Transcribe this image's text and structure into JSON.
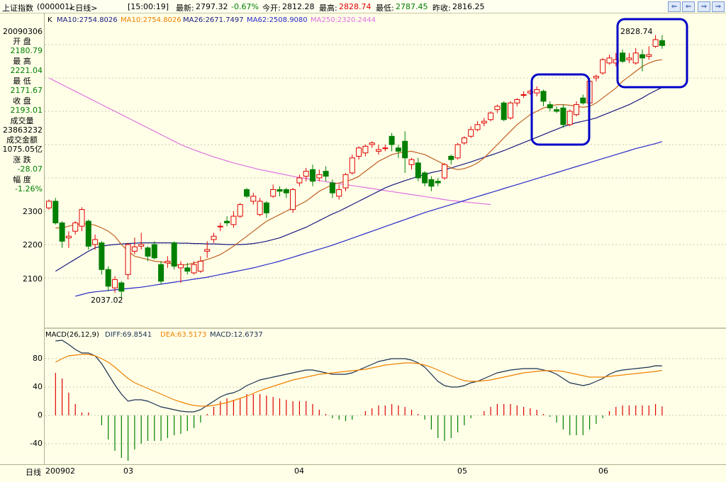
{
  "header": {
    "index_name": "上证指数",
    "code": "(000001)",
    "period": "<日线>",
    "time": "[15:00:19]",
    "latest_label": "最新:",
    "latest_value": "2797.32",
    "change_pct": "-0.67%",
    "open_label": "今开:",
    "open_value": "2812.28",
    "high_label": "最高:",
    "high_value": "2828.74",
    "low_label": "最低:",
    "low_value": "2787.45",
    "prev_label": "昨收:",
    "prev_value": "2816.25"
  },
  "ma_legend": {
    "k": "K",
    "ma10a": "MA10:2754.8026",
    "ma10b": "MA10:2754.8026",
    "ma26": "MA26:2671.7497",
    "ma62": "MA62:2508.9080",
    "ma250": "MA250:2320.2444"
  },
  "info_panel": {
    "date": "20090306",
    "open_label": "开  盘",
    "open": "2180.79",
    "high_label": "最  高",
    "high": "2221.04",
    "low_label": "最  低",
    "low": "2171.67",
    "close_label": "收  盘",
    "close": "2193.01",
    "volume_label": "成交量",
    "volume": "23863232",
    "amount_label": "成交金额",
    "amount": "1075.05亿",
    "change_label": "涨  跌",
    "change": "-28.07",
    "pct_label": "幅  度",
    "pct": "-1.26%"
  },
  "price_axis": [
    "2300",
    "2200",
    "2100"
  ],
  "macd_legend": {
    "name": "MACD(26,12,9)",
    "diff": "DIFF:69.8541",
    "dea": "DEA:63.5173",
    "macd": "MACD:12.6737"
  },
  "macd_axis": [
    "80",
    "40",
    "0",
    "-40"
  ],
  "x_axis": {
    "label": "日线",
    "ticks": [
      "200902",
      "03",
      "04",
      "05",
      "06"
    ]
  },
  "annotations": {
    "low_label": "2037.02",
    "high_label": "2828.74"
  },
  "window_buttons": [
    "⇐",
    "⇐",
    "⇒",
    "⇒"
  ],
  "colors": {
    "up": "#e00000",
    "down": "#008000",
    "ma10": "#c06020",
    "ma26": "#1a1a80",
    "ma62": "#2828c8",
    "ma250": "#e070e0",
    "diff": "#1a3050",
    "dea": "#f08000",
    "highlight": "#0000c8"
  },
  "chart_data": {
    "type": "candlestick",
    "ylim": [
      2037.02,
      2828.74
    ],
    "candles": [
      {
        "o": 2310,
        "c": 2330,
        "h": 2335,
        "l": 2305
      },
      {
        "o": 2330,
        "c": 2265,
        "h": 2340,
        "l": 2260
      },
      {
        "o": 2265,
        "c": 2210,
        "h": 2270,
        "l": 2190
      },
      {
        "o": 2220,
        "c": 2225,
        "h": 2240,
        "l": 2190
      },
      {
        "o": 2240,
        "c": 2265,
        "h": 2270,
        "l": 2230
      },
      {
        "o": 2255,
        "c": 2305,
        "h": 2312,
        "l": 2240
      },
      {
        "o": 2270,
        "c": 2195,
        "h": 2275,
        "l": 2185
      },
      {
        "o": 2200,
        "c": 2215,
        "h": 2230,
        "l": 2185
      },
      {
        "o": 2205,
        "c": 2125,
        "h": 2210,
        "l": 2110
      },
      {
        "o": 2125,
        "c": 2075,
        "h": 2135,
        "l": 2060
      },
      {
        "o": 2070,
        "c": 2095,
        "h": 2105,
        "l": 2055
      },
      {
        "o": 2085,
        "c": 2060,
        "h": 2090,
        "l": 2037.02
      },
      {
        "o": 2110,
        "c": 2200,
        "h": 2205,
        "l": 2095
      },
      {
        "o": 2180,
        "c": 2193,
        "h": 2221,
        "l": 2171
      },
      {
        "o": 2195,
        "c": 2200,
        "h": 2235,
        "l": 2185
      },
      {
        "o": 2190,
        "c": 2165,
        "h": 2195,
        "l": 2150
      },
      {
        "o": 2200,
        "c": 2160,
        "h": 2210,
        "l": 2155
      },
      {
        "o": 2140,
        "c": 2090,
        "h": 2150,
        "l": 2080
      },
      {
        "o": 2145,
        "c": 2150,
        "h": 2165,
        "l": 2130
      },
      {
        "o": 2205,
        "c": 2135,
        "h": 2210,
        "l": 2125
      },
      {
        "o": 2130,
        "c": 2140,
        "h": 2150,
        "l": 2085
      },
      {
        "o": 2130,
        "c": 2120,
        "h": 2145,
        "l": 2110
      },
      {
        "o": 2115,
        "c": 2140,
        "h": 2150,
        "l": 2110
      },
      {
        "o": 2120,
        "c": 2150,
        "h": 2165,
        "l": 2115
      },
      {
        "o": 2180,
        "c": 2185,
        "h": 2210,
        "l": 2160
      },
      {
        "o": 2215,
        "c": 2225,
        "h": 2235,
        "l": 2205
      },
      {
        "o": 2255,
        "c": 2255,
        "h": 2265,
        "l": 2240
      },
      {
        "o": 2270,
        "c": 2265,
        "h": 2285,
        "l": 2255
      },
      {
        "o": 2260,
        "c": 2285,
        "h": 2300,
        "l": 2250
      },
      {
        "o": 2285,
        "c": 2320,
        "h": 2325,
        "l": 2280
      },
      {
        "o": 2365,
        "c": 2345,
        "h": 2370,
        "l": 2340
      },
      {
        "o": 2330,
        "c": 2345,
        "h": 2355,
        "l": 2320
      },
      {
        "o": 2290,
        "c": 2330,
        "h": 2340,
        "l": 2285
      },
      {
        "o": 2325,
        "c": 2295,
        "h": 2330,
        "l": 2280
      },
      {
        "o": 2345,
        "c": 2365,
        "h": 2380,
        "l": 2340
      },
      {
        "o": 2365,
        "c": 2360,
        "h": 2375,
        "l": 2345
      },
      {
        "o": 2365,
        "c": 2355,
        "h": 2370,
        "l": 2340
      },
      {
        "o": 2305,
        "c": 2365,
        "h": 2370,
        "l": 2295
      },
      {
        "o": 2385,
        "c": 2400,
        "h": 2410,
        "l": 2375
      },
      {
        "o": 2405,
        "c": 2420,
        "h": 2430,
        "l": 2390
      },
      {
        "o": 2425,
        "c": 2390,
        "h": 2440,
        "l": 2375
      },
      {
        "o": 2400,
        "c": 2410,
        "h": 2425,
        "l": 2390
      },
      {
        "o": 2420,
        "c": 2405,
        "h": 2435,
        "l": 2390
      },
      {
        "o": 2385,
        "c": 2355,
        "h": 2395,
        "l": 2340
      },
      {
        "o": 2345,
        "c": 2365,
        "h": 2380,
        "l": 2335
      },
      {
        "o": 2370,
        "c": 2410,
        "h": 2415,
        "l": 2360
      },
      {
        "o": 2415,
        "c": 2460,
        "h": 2470,
        "l": 2410
      },
      {
        "o": 2465,
        "c": 2490,
        "h": 2495,
        "l": 2455
      },
      {
        "o": 2475,
        "c": 2495,
        "h": 2500,
        "l": 2465
      },
      {
        "o": 2500,
        "c": 2505,
        "h": 2510,
        "l": 2490
      },
      {
        "o": 2480,
        "c": 2485,
        "h": 2500,
        "l": 2470
      },
      {
        "o": 2490,
        "c": 2490,
        "h": 2500,
        "l": 2480
      },
      {
        "o": 2525,
        "c": 2500,
        "h": 2535,
        "l": 2480
      },
      {
        "o": 2490,
        "c": 2480,
        "h": 2500,
        "l": 2460
      },
      {
        "o": 2510,
        "c": 2460,
        "h": 2540,
        "l": 2415
      },
      {
        "o": 2440,
        "c": 2455,
        "h": 2460,
        "l": 2425
      },
      {
        "o": 2445,
        "c": 2400,
        "h": 2460,
        "l": 2390
      },
      {
        "o": 2415,
        "c": 2385,
        "h": 2420,
        "l": 2375
      },
      {
        "o": 2395,
        "c": 2375,
        "h": 2405,
        "l": 2360
      },
      {
        "o": 2390,
        "c": 2385,
        "h": 2400,
        "l": 2375
      },
      {
        "o": 2400,
        "c": 2440,
        "h": 2445,
        "l": 2395
      },
      {
        "o": 2465,
        "c": 2455,
        "h": 2470,
        "l": 2440
      },
      {
        "o": 2460,
        "c": 2500,
        "h": 2505,
        "l": 2455
      },
      {
        "o": 2505,
        "c": 2520,
        "h": 2525,
        "l": 2500
      },
      {
        "o": 2525,
        "c": 2545,
        "h": 2555,
        "l": 2520
      },
      {
        "o": 2545,
        "c": 2560,
        "h": 2570,
        "l": 2540
      },
      {
        "o": 2565,
        "c": 2570,
        "h": 2580,
        "l": 2555
      },
      {
        "o": 2575,
        "c": 2595,
        "h": 2600,
        "l": 2570
      },
      {
        "o": 2605,
        "c": 2615,
        "h": 2620,
        "l": 2595
      },
      {
        "o": 2625,
        "c": 2575,
        "h": 2630,
        "l": 2570
      },
      {
        "o": 2580,
        "c": 2625,
        "h": 2630,
        "l": 2575
      },
      {
        "o": 2625,
        "c": 2635,
        "h": 2640,
        "l": 2615
      },
      {
        "o": 2650,
        "c": 2650,
        "h": 2660,
        "l": 2640
      },
      {
        "o": 2655,
        "c": 2660,
        "h": 2665,
        "l": 2650
      },
      {
        "o": 2655,
        "c": 2665,
        "h": 2675,
        "l": 2645
      },
      {
        "o": 2660,
        "c": 2630,
        "h": 2665,
        "l": 2615
      },
      {
        "o": 2620,
        "c": 2610,
        "h": 2630,
        "l": 2600
      },
      {
        "o": 2605,
        "c": 2600,
        "h": 2615,
        "l": 2595
      },
      {
        "o": 2610,
        "c": 2560,
        "h": 2620,
        "l": 2550
      },
      {
        "o": 2560,
        "c": 2600,
        "h": 2605,
        "l": 2555
      },
      {
        "o": 2590,
        "c": 2620,
        "h": 2630,
        "l": 2585
      },
      {
        "o": 2640,
        "c": 2625,
        "h": 2650,
        "l": 2620
      },
      {
        "o": 2625,
        "c": 2690,
        "h": 2700,
        "l": 2620
      },
      {
        "o": 2700,
        "c": 2705,
        "h": 2710,
        "l": 2690
      },
      {
        "o": 2715,
        "c": 2755,
        "h": 2760,
        "l": 2710
      },
      {
        "o": 2745,
        "c": 2760,
        "h": 2770,
        "l": 2740
      },
      {
        "o": 2745,
        "c": 2755,
        "h": 2775,
        "l": 2735
      },
      {
        "o": 2775,
        "c": 2750,
        "h": 2785,
        "l": 2745
      },
      {
        "o": 2755,
        "c": 2760,
        "h": 2775,
        "l": 2745
      },
      {
        "o": 2745,
        "c": 2775,
        "h": 2790,
        "l": 2740
      },
      {
        "o": 2770,
        "c": 2760,
        "h": 2785,
        "l": 2720
      },
      {
        "o": 2765,
        "c": 2770,
        "h": 2795,
        "l": 2755
      },
      {
        "o": 2795,
        "c": 2815,
        "h": 2828.74,
        "l": 2790
      },
      {
        "o": 2812.28,
        "c": 2797.32,
        "h": 2828.74,
        "l": 2787.45
      }
    ],
    "ma10": [
      2250,
      2250,
      2255,
      2260,
      2262,
      2262,
      2258,
      2250,
      2240,
      2225,
      2200,
      2180,
      2165,
      2160,
      2155,
      2150,
      2148,
      2145,
      2140,
      2138,
      2140,
      2145,
      2150,
      2155,
      2162,
      2170,
      2182,
      2195,
      2210,
      2225,
      2240,
      2255,
      2270,
      2280,
      2290,
      2300,
      2310,
      2320,
      2330,
      2345,
      2360,
      2370,
      2380,
      2385,
      2390,
      2395,
      2405,
      2420,
      2435,
      2450,
      2460,
      2470,
      2475,
      2478,
      2480,
      2475,
      2470,
      2460,
      2450,
      2440,
      2430,
      2425,
      2428,
      2435,
      2445,
      2460,
      2480,
      2500,
      2520,
      2540,
      2560,
      2575,
      2590,
      2600,
      2610,
      2615,
      2620,
      2620,
      2618,
      2615,
      2612,
      2615,
      2625,
      2640,
      2655,
      2670,
      2690,
      2705,
      2720,
      2735,
      2745,
      2752,
      2755
    ],
    "ma26": [
      2120,
      2132,
      2144,
      2156,
      2168,
      2180,
      2190,
      2195,
      2198,
      2200,
      2202,
      2203,
      2204,
      2205,
      2205,
      2205,
      2205,
      2205,
      2205,
      2204,
      2204,
      2203,
      2203,
      2202,
      2202,
      2201,
      2200,
      2200,
      2200,
      2201,
      2203,
      2206,
      2210,
      2215,
      2220,
      2228,
      2236,
      2244,
      2252,
      2262,
      2272,
      2282,
      2292,
      2300,
      2310,
      2320,
      2330,
      2340,
      2350,
      2360,
      2370,
      2378,
      2385,
      2392,
      2398,
      2405,
      2410,
      2416,
      2420,
      2425,
      2430,
      2436,
      2442,
      2448,
      2455,
      2462,
      2468,
      2475,
      2482,
      2490,
      2498,
      2506,
      2514,
      2522,
      2530,
      2538,
      2546,
      2554,
      2560,
      2566,
      2570,
      2575,
      2580,
      2588,
      2596,
      2604,
      2612,
      2620,
      2630,
      2640,
      2652,
      2662,
      2671.75
    ],
    "ma62": [
      2045,
      2050,
      2055,
      2058,
      2060,
      2062,
      2064,
      2066,
      2068,
      2070,
      2072,
      2075,
      2078,
      2081,
      2084,
      2087,
      2090,
      2093,
      2096,
      2099,
      2102,
      2106,
      2110,
      2114,
      2118,
      2122,
      2126,
      2130,
      2135,
      2140,
      2145,
      2150,
      2156,
      2162,
      2168,
      2174,
      2180,
      2186,
      2192,
      2198,
      2205,
      2212,
      2219,
      2226,
      2233,
      2240,
      2247,
      2254,
      2261,
      2268,
      2275,
      2282,
      2289,
      2296,
      2302,
      2308,
      2314,
      2320,
      2326,
      2332,
      2338,
      2344,
      2350,
      2356,
      2362,
      2368,
      2374,
      2380,
      2386,
      2392,
      2398,
      2404,
      2410,
      2416,
      2422,
      2428,
      2434,
      2440,
      2446,
      2452,
      2458,
      2464,
      2470,
      2476,
      2482,
      2488,
      2493,
      2498,
      2503,
      2508.91
    ],
    "ma250": [
      2700,
      2690,
      2680,
      2670,
      2660,
      2650,
      2640,
      2630,
      2620,
      2610,
      2600,
      2590,
      2580,
      2570,
      2560,
      2550,
      2540,
      2530,
      2520,
      2510,
      2500,
      2492,
      2484,
      2477,
      2470,
      2463,
      2457,
      2451,
      2445,
      2440,
      2435,
      2430,
      2425,
      2421,
      2417,
      2413,
      2409,
      2405,
      2401,
      2398,
      2395,
      2392,
      2389,
      2386,
      2383,
      2380,
      2377,
      2374,
      2371,
      2368,
      2365,
      2362,
      2359,
      2356,
      2353,
      2350,
      2347,
      2344,
      2341,
      2338,
      2335,
      2332,
      2330,
      2328,
      2326,
      2324,
      2322,
      2320.24
    ],
    "macd": {
      "ylim": [
        -65,
        115
      ],
      "diff": [
        105,
        106,
        100,
        93,
        88,
        88,
        84,
        73,
        58,
        43,
        30,
        20,
        22,
        22,
        20,
        16,
        12,
        10,
        8,
        6,
        5,
        5,
        8,
        14,
        20,
        26,
        30,
        32,
        36,
        42,
        46,
        50,
        52,
        54,
        56,
        58,
        60,
        62,
        64,
        64,
        62,
        60,
        58,
        58,
        58,
        60,
        64,
        68,
        72,
        76,
        78,
        80,
        80,
        80,
        78,
        74,
        68,
        58,
        48,
        42,
        40,
        40,
        42,
        46,
        48,
        52,
        56,
        60,
        62,
        64,
        65,
        66,
        66,
        66,
        64,
        62,
        58,
        52,
        46,
        44,
        42,
        44,
        48,
        52,
        58,
        62,
        64,
        65,
        66,
        67,
        68,
        70,
        69.85
      ],
      "dea": [
        75,
        80,
        84,
        85,
        86,
        86,
        84,
        80,
        75,
        68,
        60,
        52,
        46,
        42,
        38,
        34,
        30,
        26,
        22,
        19,
        16,
        14,
        13,
        13,
        14,
        16,
        18,
        21,
        24,
        27,
        31,
        35,
        38,
        41,
        44,
        47,
        50,
        52,
        54,
        56,
        58,
        59,
        60,
        61,
        62,
        63,
        64,
        65,
        67,
        69,
        71,
        72,
        73,
        74,
        74,
        73,
        71,
        68,
        64,
        60,
        56,
        52,
        49,
        48,
        48,
        49,
        50,
        52,
        54,
        56,
        58,
        60,
        61,
        62,
        63,
        63,
        63,
        62,
        60,
        58,
        56,
        54,
        54,
        54,
        55,
        56,
        57,
        58,
        59,
        60,
        61,
        62,
        63.52
      ],
      "macd": [
        60,
        52,
        32,
        16,
        4,
        4,
        0,
        -14,
        -34,
        -50,
        -60,
        -64,
        -48,
        -40,
        -36,
        -36,
        -36,
        -32,
        -28,
        -26,
        -22,
        -18,
        -10,
        2,
        12,
        20,
        24,
        22,
        24,
        30,
        30,
        30,
        28,
        26,
        24,
        22,
        20,
        20,
        20,
        16,
        8,
        2,
        -4,
        -6,
        -8,
        -6,
        0,
        6,
        10,
        14,
        14,
        16,
        14,
        12,
        8,
        2,
        -6,
        -20,
        -32,
        -36,
        -32,
        -24,
        -14,
        -4,
        0,
        6,
        12,
        16,
        16,
        16,
        14,
        12,
        10,
        8,
        2,
        -2,
        -10,
        -20,
        -28,
        -28,
        -28,
        -20,
        -12,
        -4,
        6,
        12,
        14,
        14,
        14,
        14,
        14,
        16,
        12.67
      ]
    }
  }
}
